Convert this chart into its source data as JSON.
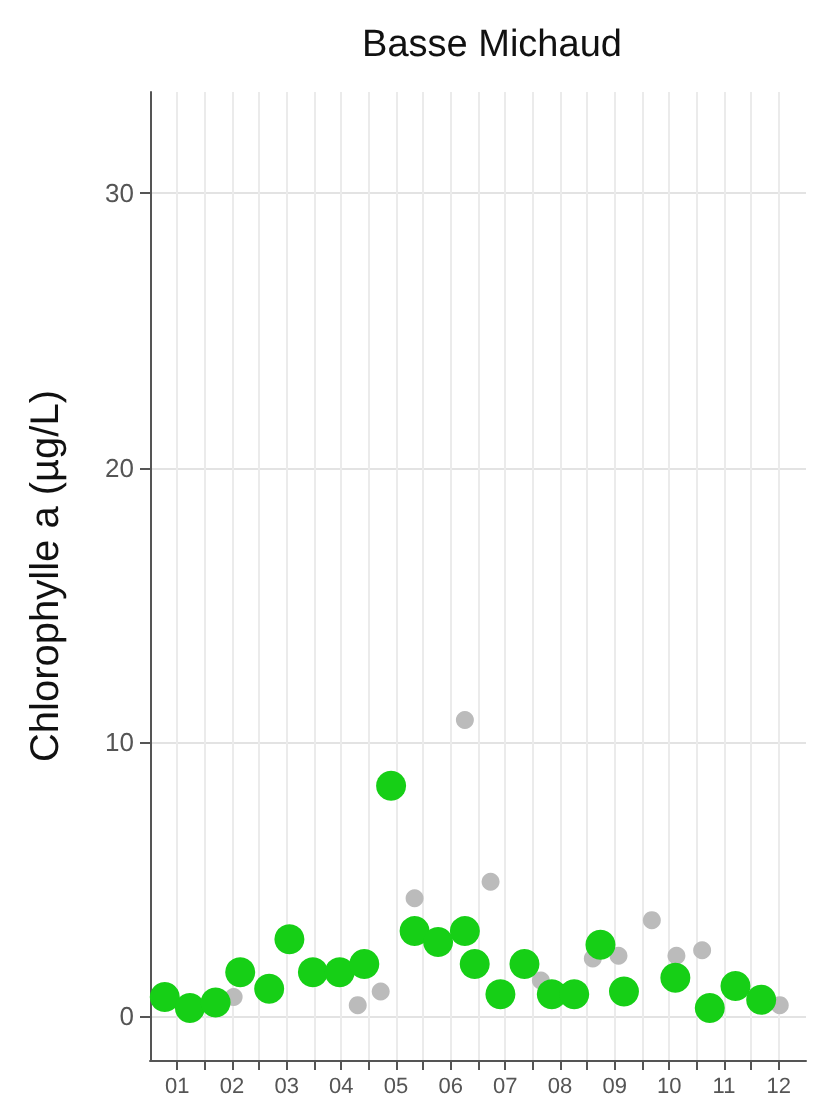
{
  "chart_data": {
    "type": "scatter",
    "title": "Basse Michaud",
    "ylabel": "Chlorophylle a (µg/L)",
    "xlim": [
      0,
      12
    ],
    "ylim": [
      -1.6,
      33.7
    ],
    "xticks": [
      {
        "value": 0.5,
        "label": "01"
      },
      {
        "value": 1,
        "label": null
      },
      {
        "value": 1.5,
        "label": "02"
      },
      {
        "value": 2,
        "label": null
      },
      {
        "value": 2.5,
        "label": "03"
      },
      {
        "value": 3,
        "label": null
      },
      {
        "value": 3.5,
        "label": "04"
      },
      {
        "value": 4,
        "label": null
      },
      {
        "value": 4.5,
        "label": "05"
      },
      {
        "value": 5,
        "label": null
      },
      {
        "value": 5.5,
        "label": "06"
      },
      {
        "value": 6,
        "label": null
      },
      {
        "value": 6.5,
        "label": "07"
      },
      {
        "value": 7,
        "label": null
      },
      {
        "value": 7.5,
        "label": "08"
      },
      {
        "value": 8,
        "label": null
      },
      {
        "value": 8.5,
        "label": "09"
      },
      {
        "value": 9,
        "label": null
      },
      {
        "value": 9.5,
        "label": "10"
      },
      {
        "value": 10,
        "label": null
      },
      {
        "value": 10.5,
        "label": "11"
      },
      {
        "value": 11,
        "label": null
      },
      {
        "value": 11.5,
        "label": "12"
      }
    ],
    "yticks": [
      0,
      10,
      20,
      30
    ],
    "grid": true,
    "marker": "circle",
    "series": [
      {
        "color": "#bbbbbb",
        "x": [
          1.53,
          2.36,
          3.8,
          4.22,
          4.84,
          5.76,
          6.23,
          7.15,
          8.1,
          8.57,
          9.18,
          9.63,
          10.1,
          11.52
        ],
        "values": [
          0.7,
          null,
          0.4,
          0.9,
          4.3,
          10.8,
          4.9,
          1.3,
          2.1,
          2.2,
          3.5,
          2.2,
          2.4,
          0.4
        ]
      },
      {
        "color": "#16cf16",
        "x": [
          0.27,
          0.73,
          1.2,
          1.65,
          2.18,
          2.55,
          2.98,
          3.47,
          3.92,
          4.41,
          4.84,
          5.27,
          5.76,
          5.94,
          6.41,
          6.85,
          7.35,
          7.76,
          8.24,
          8.67,
          9.61,
          10.24,
          10.71,
          11.18
        ],
        "values": [
          0.7,
          0.3,
          0.5,
          1.6,
          1.0,
          2.8,
          1.6,
          1.6,
          1.9,
          8.4,
          3.1,
          2.7,
          3.1,
          1.9,
          0.8,
          1.9,
          0.8,
          0.8,
          2.6,
          0.9,
          1.4,
          0.3,
          1.1,
          0.6
        ]
      }
    ]
  }
}
